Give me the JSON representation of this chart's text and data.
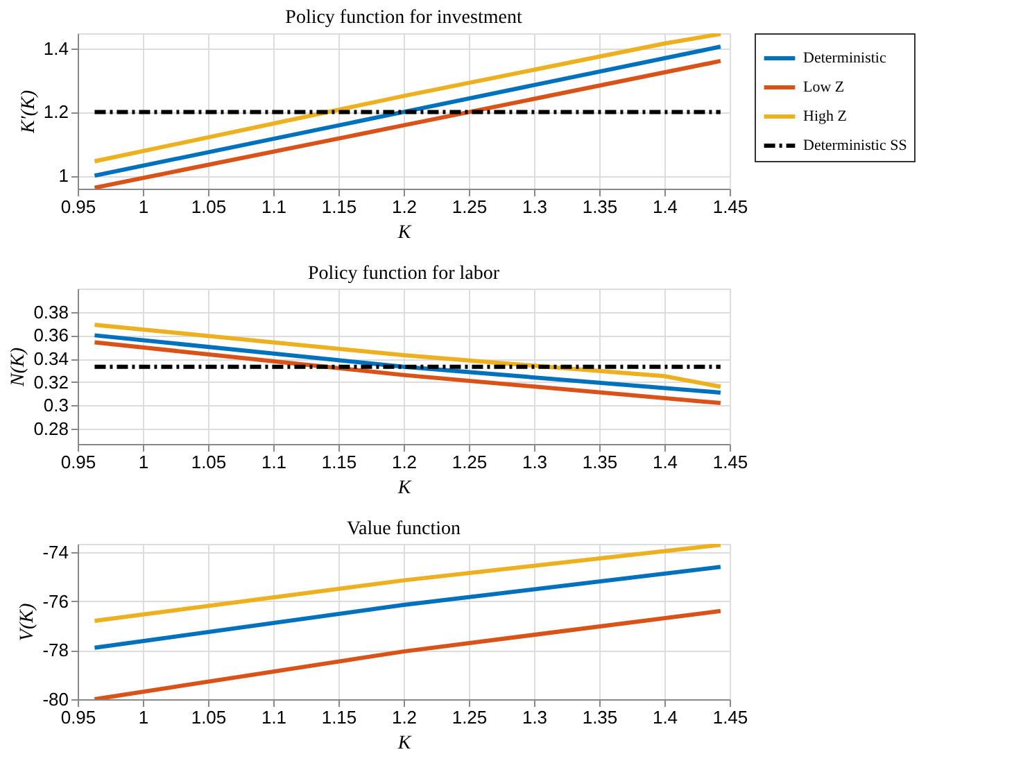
{
  "chart_data": [
    {
      "type": "line",
      "title": "Policy function for investment",
      "xlabel": "K",
      "ylabel": "K′(K)",
      "xlim": [
        0.95,
        1.45
      ],
      "xticks": [
        0.95,
        1,
        1.05,
        1.1,
        1.15,
        1.2,
        1.25,
        1.3,
        1.35,
        1.4,
        1.45
      ],
      "ylim": [
        0.959,
        1.447
      ],
      "yticks": [
        1,
        1.2,
        1.4
      ],
      "grid": true,
      "legend": "right",
      "line_style": "solid",
      "series": [
        {
          "name": "Deterministic",
          "color": "#0072bd",
          "x": [
            0.963,
            1.2,
            1.443
          ],
          "values": [
            1.0,
            1.2,
            1.405
          ]
        },
        {
          "name": "Low Z",
          "color": "#d95319",
          "x": [
            0.963,
            1.2,
            1.443
          ],
          "values": [
            0.962,
            1.158,
            1.36
          ]
        },
        {
          "name": "High Z",
          "color": "#edb120",
          "x": [
            0.963,
            1.2,
            1.4,
            1.443
          ],
          "values": [
            1.045,
            1.25,
            1.415,
            1.445
          ]
        },
        {
          "name": "Deterministic SS",
          "color": "#000000",
          "line_style": "dashed",
          "x": [
            0.963,
            1.443
          ],
          "values": [
            1.2,
            1.2
          ]
        }
      ]
    },
    {
      "type": "line",
      "title": "Policy function for labor",
      "xlabel": "K",
      "ylabel": "N(K)",
      "xlim": [
        0.95,
        1.45
      ],
      "xticks": [
        0.95,
        1,
        1.05,
        1.1,
        1.15,
        1.2,
        1.25,
        1.3,
        1.35,
        1.4,
        1.45
      ],
      "ylim": [
        0.267,
        0.4
      ],
      "yticks": [
        0.28,
        0.3,
        0.32,
        0.34,
        0.36,
        0.38
      ],
      "grid": true,
      "line_style": "solid",
      "series": [
        {
          "color": "#0072bd",
          "x": [
            0.963,
            1.2,
            1.443
          ],
          "values": [
            0.36,
            0.333,
            0.311
          ]
        },
        {
          "color": "#d95319",
          "x": [
            0.963,
            1.2,
            1.443
          ],
          "values": [
            0.354,
            0.326,
            0.302
          ]
        },
        {
          "color": "#edb120",
          "x": [
            0.963,
            1.2,
            1.3,
            1.4,
            1.443
          ],
          "values": [
            0.369,
            0.343,
            0.334,
            0.325,
            0.316
          ]
        },
        {
          "color": "#000000",
          "line_style": "dashed",
          "x": [
            0.963,
            1.443
          ],
          "values": [
            0.333,
            0.333
          ]
        }
      ]
    },
    {
      "type": "line",
      "title": "Value function",
      "xlabel": "K",
      "ylabel": "V(K)",
      "xlim": [
        0.95,
        1.45
      ],
      "xticks": [
        0.95,
        1,
        1.05,
        1.1,
        1.15,
        1.2,
        1.25,
        1.3,
        1.35,
        1.4,
        1.45
      ],
      "ylim": [
        -80,
        -73.66
      ],
      "yticks": [
        -80,
        -78,
        -76,
        -74
      ],
      "grid": true,
      "line_style": "solid",
      "series": [
        {
          "color": "#0072bd",
          "x": [
            0.963,
            1.2,
            1.443
          ],
          "values": [
            -77.9,
            -76.15,
            -74.6
          ]
        },
        {
          "color": "#d95319",
          "x": [
            0.963,
            1.2,
            1.443
          ],
          "values": [
            -80,
            -78.05,
            -76.4
          ]
        },
        {
          "color": "#edb120",
          "x": [
            0.963,
            1.2,
            1.443
          ],
          "values": [
            -76.8,
            -75.15,
            -73.7
          ]
        }
      ]
    }
  ]
}
